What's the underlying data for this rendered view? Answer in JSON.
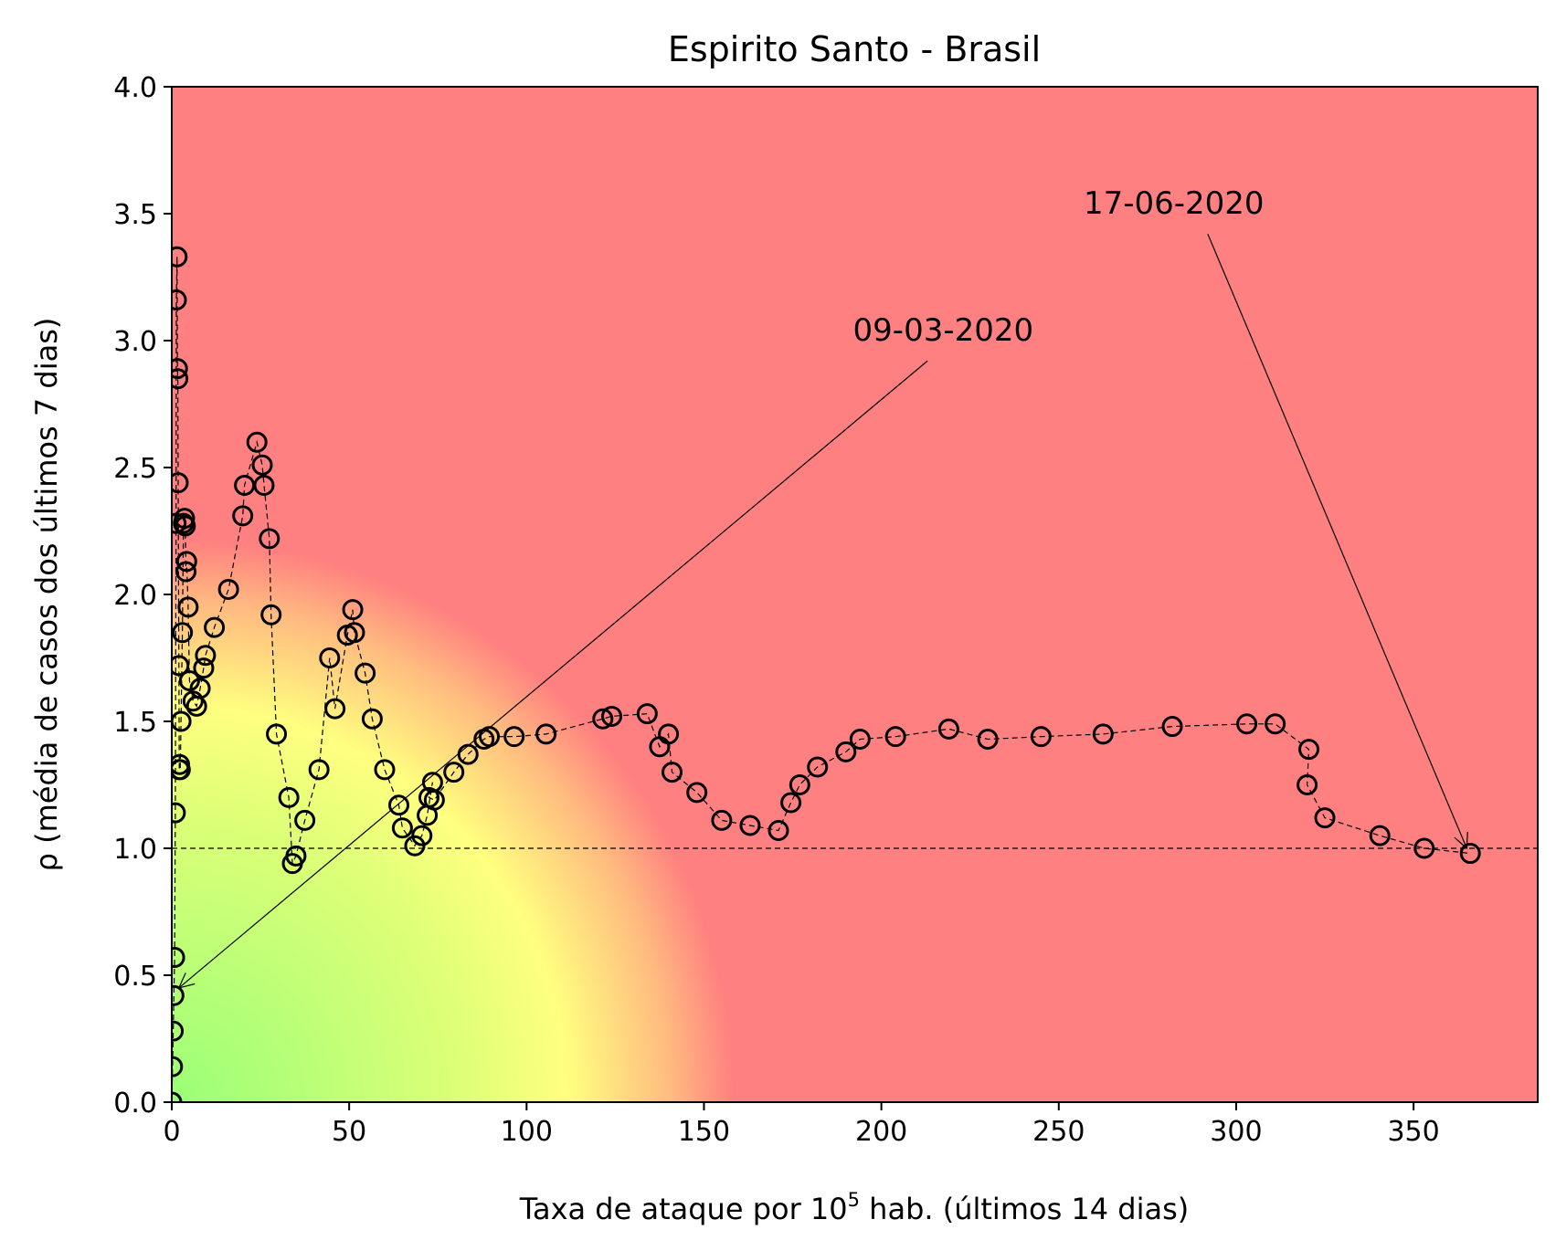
{
  "chart_data": {
    "type": "scatter",
    "title": "Espirito Santo - Brasil",
    "xlabel": "Taxa de ataque por 10",
    "xlabel_sup": "5",
    "xlabel_suffix": " hab. (últimos 14 dias)",
    "ylabel": "ρ (média de casos dos últimos 7 dias)",
    "xlim": [
      0,
      385
    ],
    "ylim": [
      0,
      4.0
    ],
    "xticks": [
      0,
      50,
      100,
      150,
      200,
      250,
      300,
      350
    ],
    "yticks": [
      0.0,
      0.5,
      1.0,
      1.5,
      2.0,
      2.5,
      3.0,
      3.5,
      4.0
    ],
    "x_tick_labels": [
      "0",
      "50",
      "100",
      "150",
      "200",
      "250",
      "300",
      "350"
    ],
    "y_tick_labels": [
      "0.0",
      "0.5",
      "1.0",
      "1.5",
      "2.0",
      "2.5",
      "3.0",
      "3.5",
      "4.0"
    ],
    "reference_line_y": 1.0,
    "background": {
      "low_color": "#99ff77",
      "mid_color": "#ffff80",
      "high_color": "#ff8080"
    },
    "annotations": [
      {
        "text": "09-03-2020",
        "text_x": 192,
        "text_y": 3.0,
        "arrow_from_x": 213,
        "arrow_from_y": 2.92,
        "arrow_to_x": 2,
        "arrow_to_y": 0.45
      },
      {
        "text": "17-06-2020",
        "text_x": 257,
        "text_y": 3.5,
        "arrow_from_x": 292,
        "arrow_from_y": 3.42,
        "arrow_to_x": 365,
        "arrow_to_y": 1.0
      }
    ],
    "series": [
      {
        "x": [
          0,
          0.2,
          0.4,
          0.6,
          0.8,
          1.0,
          1.2,
          1.3,
          1.5,
          1.6,
          1.7,
          1.8,
          2.0,
          2.1,
          2.2,
          2.4,
          2.6,
          3.0,
          3.3,
          3.6,
          3.8,
          4.0,
          4.2,
          4.6,
          5.0,
          6.0,
          7.0,
          8.0,
          9.0,
          9.5,
          12,
          16,
          20,
          20.5,
          24,
          25.5,
          26,
          27.5,
          28,
          29.5,
          33,
          34,
          35,
          37.5,
          41.5,
          44.5,
          46,
          49.5,
          51,
          51.5,
          54.5,
          56.5,
          60,
          64,
          65,
          68.5,
          70.5,
          72,
          73.5,
          72.5,
          74,
          79.5,
          83.5,
          88,
          89.5,
          96.5,
          105.5,
          121.5,
          124,
          134,
          137.5,
          140,
          141,
          148,
          155,
          163,
          171,
          174.5,
          177,
          182,
          190,
          194,
          204,
          219,
          230,
          245,
          262.5,
          282,
          303,
          311,
          320.5,
          320,
          325,
          340.5,
          353,
          366
        ],
        "y": [
          0.0,
          0.14,
          0.28,
          0.42,
          0.57,
          1.14,
          2.28,
          3.16,
          3.33,
          2.89,
          2.85,
          2.44,
          1.72,
          1.31,
          1.33,
          1.31,
          1.5,
          1.85,
          2.28,
          2.3,
          2.27,
          2.09,
          2.13,
          1.95,
          1.66,
          1.58,
          1.56,
          1.63,
          1.71,
          1.76,
          1.87,
          2.02,
          2.31,
          2.43,
          2.6,
          2.51,
          2.43,
          2.22,
          1.92,
          1.45,
          1.2,
          0.94,
          0.97,
          1.11,
          1.31,
          1.75,
          1.55,
          1.84,
          1.94,
          1.85,
          1.69,
          1.51,
          1.31,
          1.17,
          1.08,
          1.01,
          1.05,
          1.13,
          1.26,
          1.2,
          1.19,
          1.3,
          1.37,
          1.43,
          1.44,
          1.44,
          1.45,
          1.51,
          1.52,
          1.53,
          1.4,
          1.45,
          1.3,
          1.22,
          1.11,
          1.09,
          1.07,
          1.18,
          1.25,
          1.32,
          1.38,
          1.43,
          1.44,
          1.47,
          1.43,
          1.44,
          1.45,
          1.48,
          1.49,
          1.49,
          1.39,
          1.25,
          1.12,
          1.05,
          1.0,
          0.98
        ]
      }
    ]
  }
}
